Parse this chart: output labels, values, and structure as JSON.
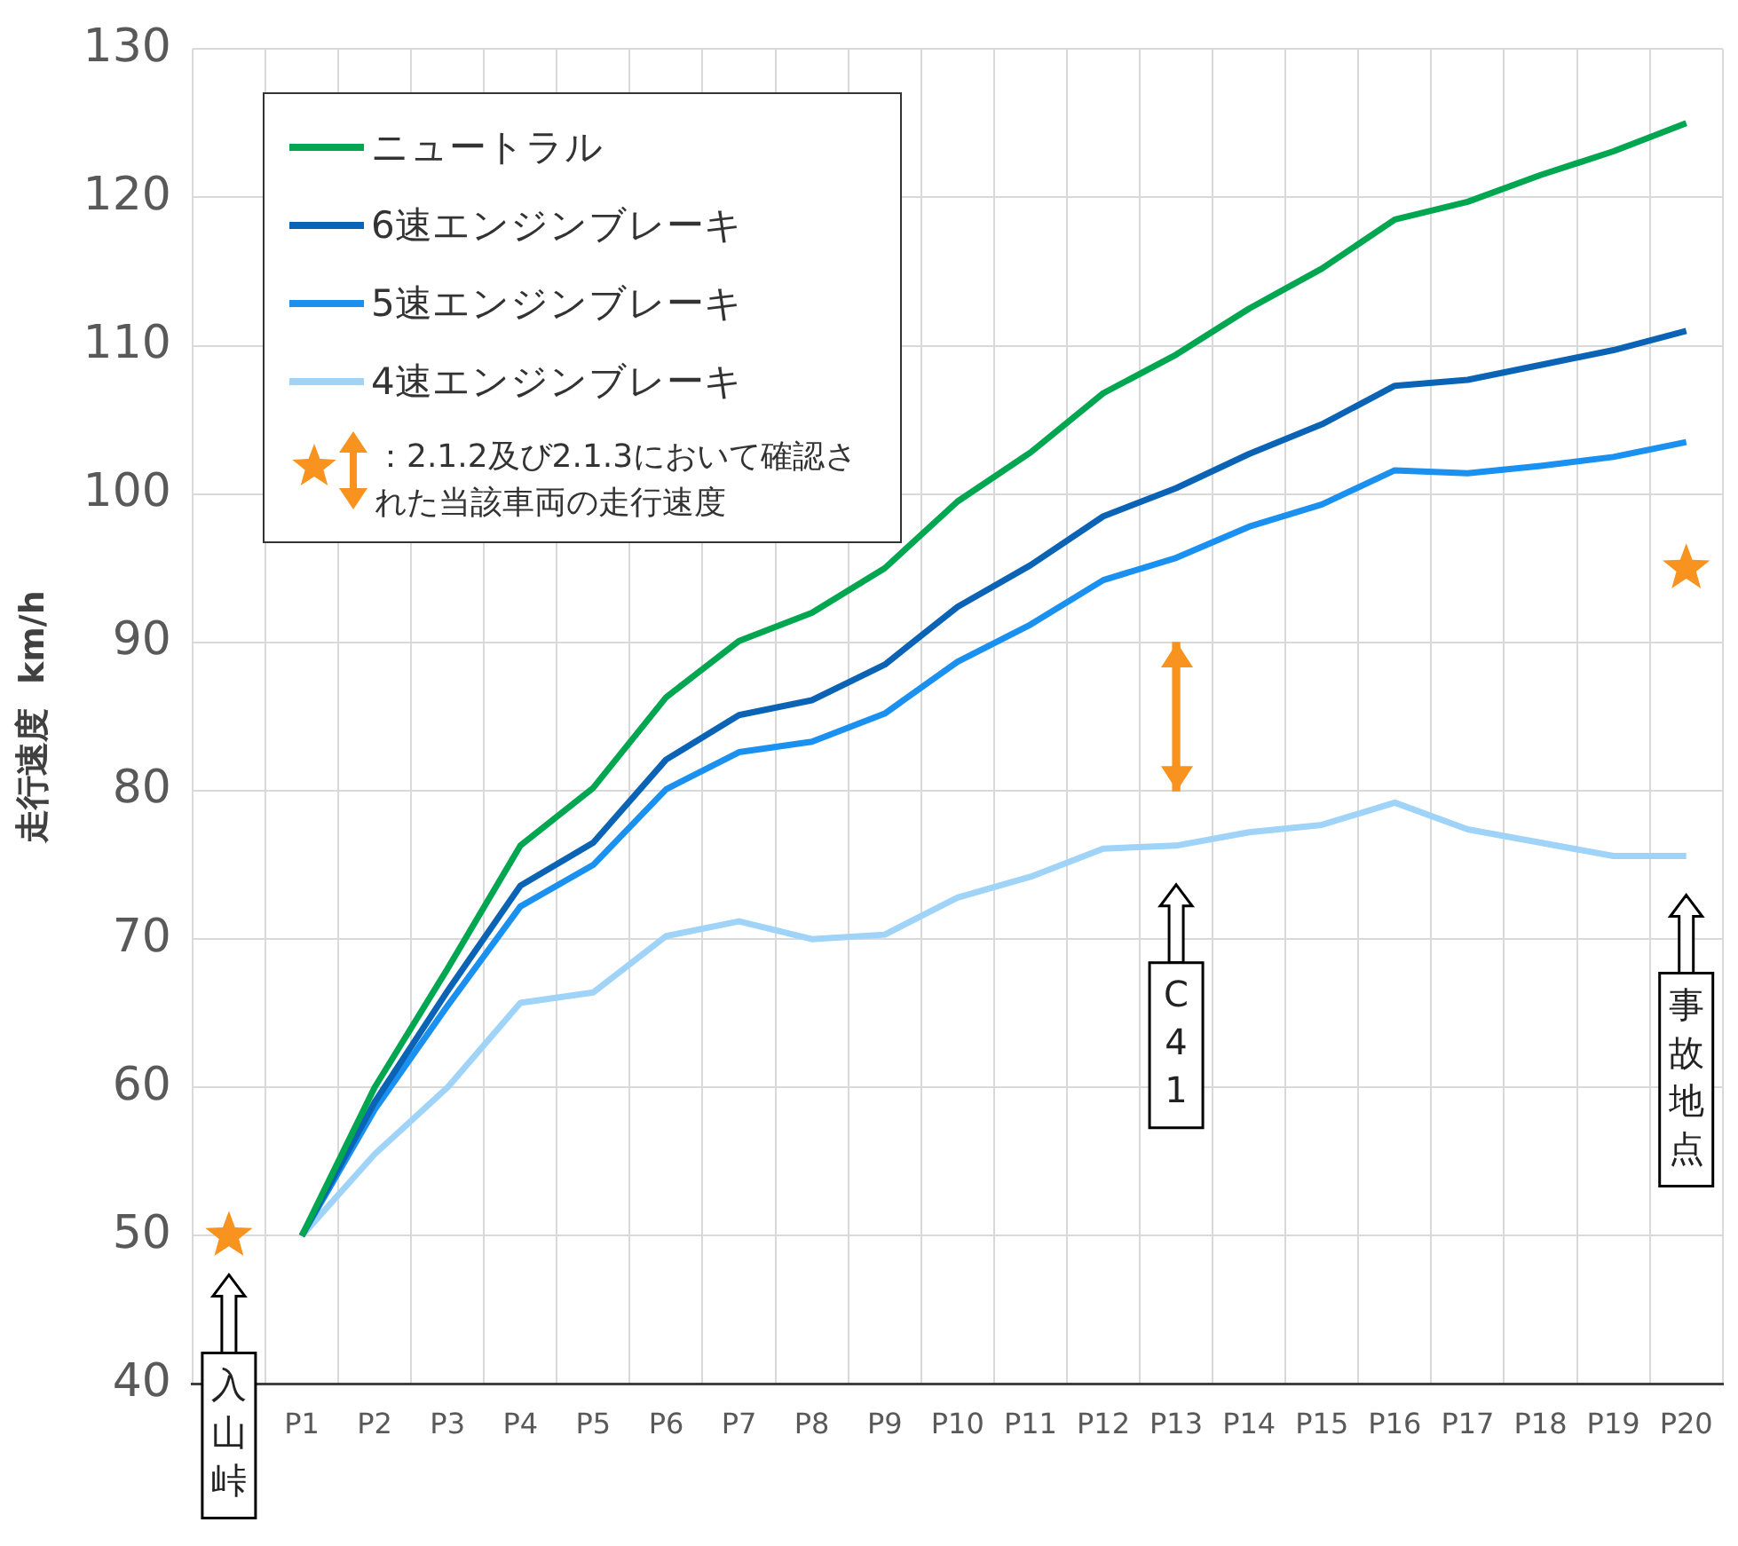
{
  "chart_data": {
    "type": "line",
    "ylabel": "走行速度  km/h",
    "categories": [
      null,
      "P1",
      "P2",
      "P3",
      "P4",
      "P5",
      "P6",
      "P7",
      "P8",
      "P9",
      "P10",
      "P11",
      "P12",
      "P13",
      "P14",
      "P15",
      "P16",
      "P17",
      "P18",
      "P19",
      "P20"
    ],
    "ylim": [
      40,
      130
    ],
    "yticks": [
      40,
      50,
      60,
      70,
      80,
      90,
      100,
      110,
      120,
      130
    ],
    "grid": true,
    "legend": "top left",
    "marker": "none",
    "line_style": "solid",
    "series": [
      {
        "name": "ニュートラル",
        "color": "#00a650",
        "values": [
          null,
          50,
          60,
          68,
          76.3,
          80.2,
          86.3,
          90.1,
          92,
          95,
          99.5,
          102.8,
          106.8,
          109.4,
          112.5,
          115.2,
          118.5,
          119.7,
          121.5,
          123.1,
          125
        ]
      },
      {
        "name": "6速エンジンブレーキ",
        "color": "#0b63b5",
        "values": [
          null,
          50,
          59,
          66.5,
          73.6,
          76.5,
          82.1,
          85.1,
          86.1,
          88.5,
          92.4,
          95.2,
          98.5,
          100.4,
          102.7,
          104.7,
          107.3,
          107.7,
          108.7,
          109.7,
          111
        ]
      },
      {
        "name": "5速エンジンブレーキ",
        "color": "#1a90f0",
        "values": [
          null,
          50,
          58.5,
          65.5,
          72.2,
          75,
          80.1,
          82.6,
          83.3,
          85.2,
          88.7,
          91.2,
          94.2,
          95.7,
          97.8,
          99.3,
          101.6,
          101.4,
          101.9,
          102.5,
          103.5
        ]
      },
      {
        "name": "4速エンジンブレーキ",
        "color": "#9fd3f7",
        "values": [
          null,
          50,
          55.5,
          60,
          65.7,
          66.4,
          70.2,
          71.2,
          70,
          70.3,
          72.8,
          74.2,
          76.1,
          76.3,
          77.2,
          77.7,
          79.2,
          77.4,
          76.5,
          75.6,
          75.6
        ]
      },
      {
        "name": "：2.1.2及び2.1.3において確認された当該車両の走行速度",
        "type": "scatter",
        "marker": "star",
        "color": "#f7931e",
        "values": [
          50,
          null,
          null,
          null,
          null,
          null,
          null,
          null,
          null,
          null,
          null,
          null,
          null,
          null,
          null,
          null,
          null,
          null,
          null,
          null,
          95
        ]
      },
      {
        "type": "bar",
        "color": "#f7931e",
        "values": [
          null,
          null,
          null,
          null,
          null,
          null,
          null,
          null,
          null,
          null,
          null,
          null,
          null,
          10,
          null,
          null,
          null,
          null,
          null,
          null,
          null
        ],
        "base": [
          null,
          null,
          null,
          null,
          null,
          null,
          null,
          null,
          null,
          null,
          null,
          null,
          null,
          80,
          null,
          null,
          null,
          null,
          null,
          null,
          null
        ]
      }
    ],
    "annotations": [
      "入山峠",
      "C41",
      "事故地点"
    ]
  }
}
